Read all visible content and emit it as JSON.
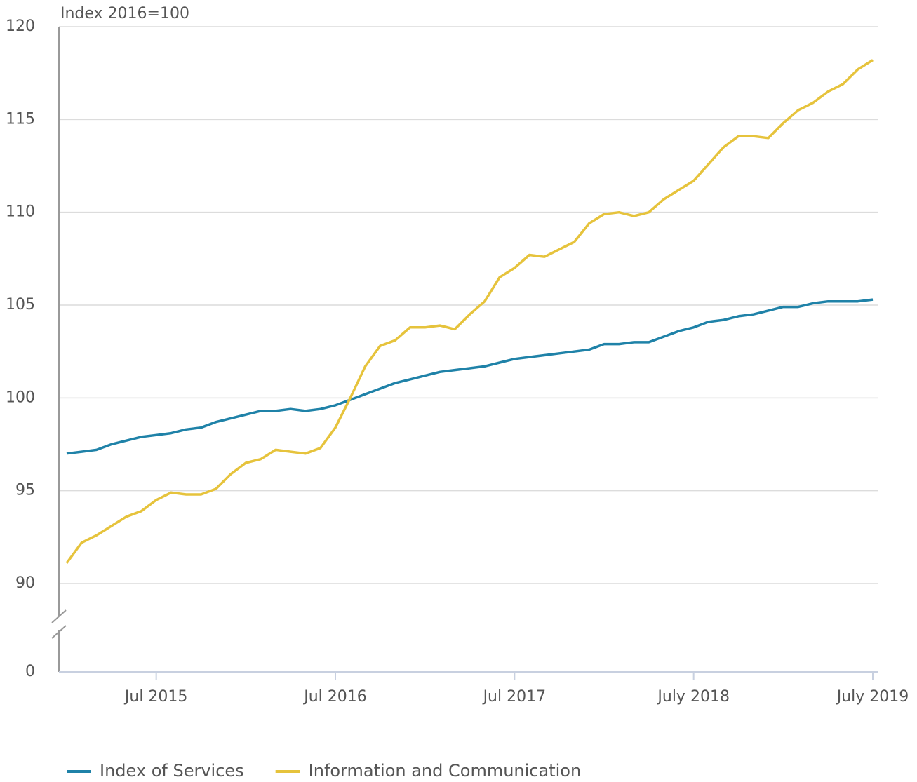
{
  "chart_data": {
    "type": "line",
    "y_axis_label": "Index 2016=100",
    "categories": [
      null,
      null,
      null,
      null,
      null,
      null,
      "Jul 2015",
      null,
      null,
      null,
      null,
      null,
      null,
      null,
      null,
      null,
      null,
      null,
      "Jul 2016",
      null,
      null,
      null,
      null,
      null,
      null,
      null,
      null,
      null,
      null,
      null,
      "Jul 2017",
      null,
      null,
      null,
      null,
      null,
      null,
      null,
      null,
      null,
      null,
      null,
      "July 2018",
      null,
      null,
      null,
      null,
      null,
      null,
      null,
      null,
      null,
      null,
      null,
      "July 2019"
    ],
    "series": [
      {
        "name": "Index of Services",
        "color": "#1f82a8",
        "values": [
          97.0,
          97.1,
          97.2,
          97.5,
          97.7,
          97.9,
          98.0,
          98.1,
          98.3,
          98.4,
          98.7,
          98.9,
          99.1,
          99.3,
          99.3,
          99.4,
          99.3,
          99.4,
          99.6,
          99.9,
          100.2,
          100.5,
          100.8,
          101.0,
          101.2,
          101.4,
          101.5,
          101.6,
          101.7,
          101.9,
          102.1,
          102.2,
          102.3,
          102.4,
          102.5,
          102.6,
          102.9,
          102.9,
          103.0,
          103.0,
          103.3,
          103.6,
          103.8,
          104.1,
          104.2,
          104.4,
          104.5,
          104.7,
          104.9,
          104.9,
          105.1,
          105.2,
          105.2,
          105.2,
          105.3
        ]
      },
      {
        "name": "Information and Communication",
        "color": "#e6c33c",
        "values": [
          91.1,
          92.2,
          92.6,
          93.1,
          93.6,
          93.9,
          94.5,
          94.9,
          94.8,
          94.8,
          95.1,
          95.9,
          96.5,
          96.7,
          97.2,
          97.1,
          97.0,
          97.3,
          98.4,
          100.0,
          101.7,
          102.8,
          103.1,
          103.8,
          103.8,
          103.9,
          103.7,
          104.5,
          105.2,
          106.5,
          107.0,
          107.7,
          107.6,
          108.0,
          108.4,
          109.4,
          109.9,
          110.0,
          109.8,
          110.0,
          110.7,
          111.2,
          111.7,
          112.6,
          113.5,
          114.1,
          114.1,
          114.0,
          114.8,
          115.5,
          115.9,
          116.5,
          116.9,
          117.7,
          118.2
        ]
      }
    ],
    "ylim": [
      90,
      120
    ],
    "yticks": [
      0,
      90,
      95,
      100,
      105,
      110,
      115,
      120
    ],
    "axis_break": true,
    "grid": true,
    "legend": "bottom"
  }
}
